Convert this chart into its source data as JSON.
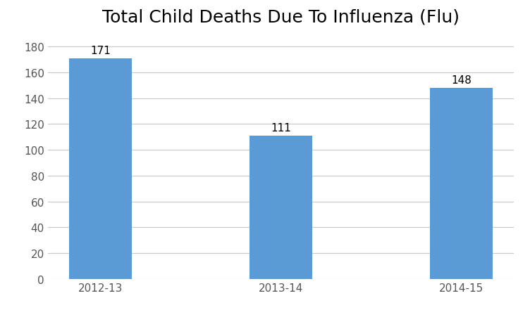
{
  "title": "Total Child Deaths Due To Influenza (Flu)",
  "categories": [
    "2012-13",
    "2013-14",
    "2014-15"
  ],
  "values": [
    171,
    111,
    148
  ],
  "bar_color": "#5B9BD5",
  "background_color": "#FFFFFF",
  "grid_color": "#C8C8C8",
  "ylim": [
    0,
    192
  ],
  "yticks": [
    0,
    20,
    40,
    60,
    80,
    100,
    120,
    140,
    160,
    180
  ],
  "title_fontsize": 18,
  "tick_fontsize": 11,
  "label_fontsize": 11,
  "bar_width": 0.35
}
